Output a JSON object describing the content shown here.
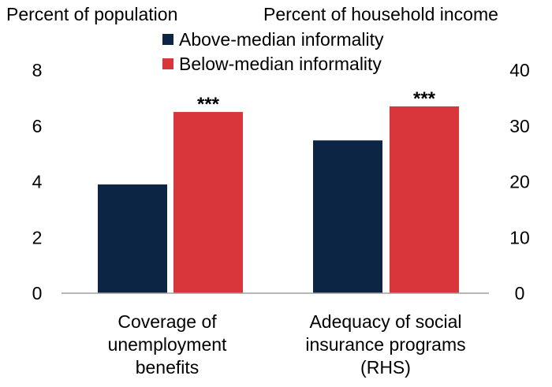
{
  "chart_data": {
    "type": "bar",
    "left_axis_label": "Percent of population",
    "right_axis_label": "Percent of household income",
    "left_axis": {
      "ylim": [
        0,
        8
      ],
      "ticks": [
        0,
        2,
        4,
        6,
        8
      ]
    },
    "right_axis": {
      "ylim": [
        0,
        40
      ],
      "ticks": [
        0,
        10,
        20,
        30,
        40
      ]
    },
    "categories": [
      {
        "lines": [
          "Coverage of",
          "unemployment",
          "benefits"
        ],
        "axis": "left"
      },
      {
        "lines": [
          "Adequacy of social",
          "insurance programs",
          "(RHS)"
        ],
        "axis": "right"
      }
    ],
    "series": [
      {
        "name": "Above-median informality",
        "color": "#0d2545",
        "values": [
          3.9,
          27.4
        ]
      },
      {
        "name": "Below-median informality",
        "color": "#d8363a",
        "values": [
          6.5,
          33.5
        ]
      }
    ],
    "annotations": [
      {
        "category": 1,
        "series": 0,
        "text": ""
      },
      {
        "category": 0,
        "series": 1,
        "text": "***"
      },
      {
        "category": 1,
        "series": 1,
        "text": "***"
      }
    ]
  }
}
